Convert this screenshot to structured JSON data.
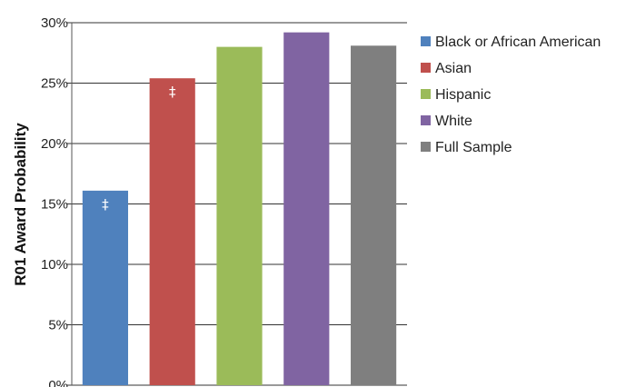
{
  "chart_data": {
    "type": "bar",
    "title": "",
    "xlabel": "",
    "ylabel": "R01 Award Probability",
    "ylim": [
      0,
      30
    ],
    "yticks": [
      0,
      5,
      10,
      15,
      20,
      25,
      30
    ],
    "ytick_suffix": "%",
    "grid": true,
    "legend_position": "right",
    "categories": [
      "Black or African American",
      "Asian",
      "Hispanic",
      "White",
      "Full Sample"
    ],
    "values": [
      16.1,
      25.4,
      28.0,
      29.2,
      28.1
    ],
    "colors": [
      "#4f81bd",
      "#c0504d",
      "#9bbb59",
      "#8064a2",
      "#7f7f7f"
    ],
    "annotations": [
      "‡",
      "‡",
      "",
      "",
      ""
    ]
  }
}
